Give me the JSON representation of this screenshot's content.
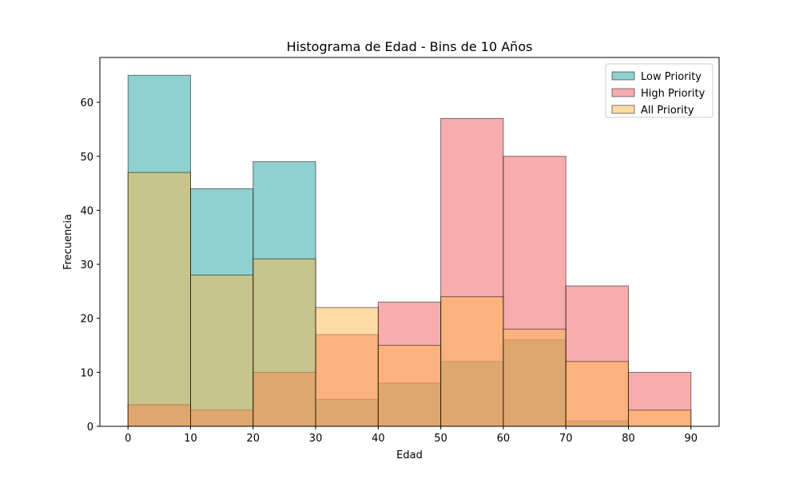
{
  "chart_data": {
    "type": "bar",
    "subtype": "overlaid-histogram",
    "title": "Histograma de Edad - Bins de 10 Años",
    "xlabel": "Edad",
    "ylabel": "Frecuencia",
    "xlim": [
      -4.5,
      94.5
    ],
    "ylim": [
      0,
      68.3
    ],
    "x_ticks": [
      0,
      10,
      20,
      30,
      40,
      50,
      60,
      70,
      80,
      90
    ],
    "y_ticks": [
      0,
      10,
      20,
      30,
      40,
      50,
      60
    ],
    "bin_edges": [
      0,
      10,
      20,
      30,
      40,
      50,
      60,
      70,
      80,
      90
    ],
    "grid": false,
    "legend_position": "top-right",
    "series": [
      {
        "name": "Low Priority",
        "color": "#20a39e",
        "values": [
          65,
          44,
          49,
          5,
          8,
          12,
          16,
          1,
          0
        ]
      },
      {
        "name": "High Priority",
        "color": "#ef5b5b",
        "values": [
          4,
          3,
          10,
          17,
          23,
          57,
          50,
          26,
          10
        ]
      },
      {
        "name": "All Priority",
        "color": "#ffb84c",
        "values": [
          47,
          28,
          31,
          22,
          15,
          24,
          18,
          12,
          3
        ]
      }
    ]
  }
}
